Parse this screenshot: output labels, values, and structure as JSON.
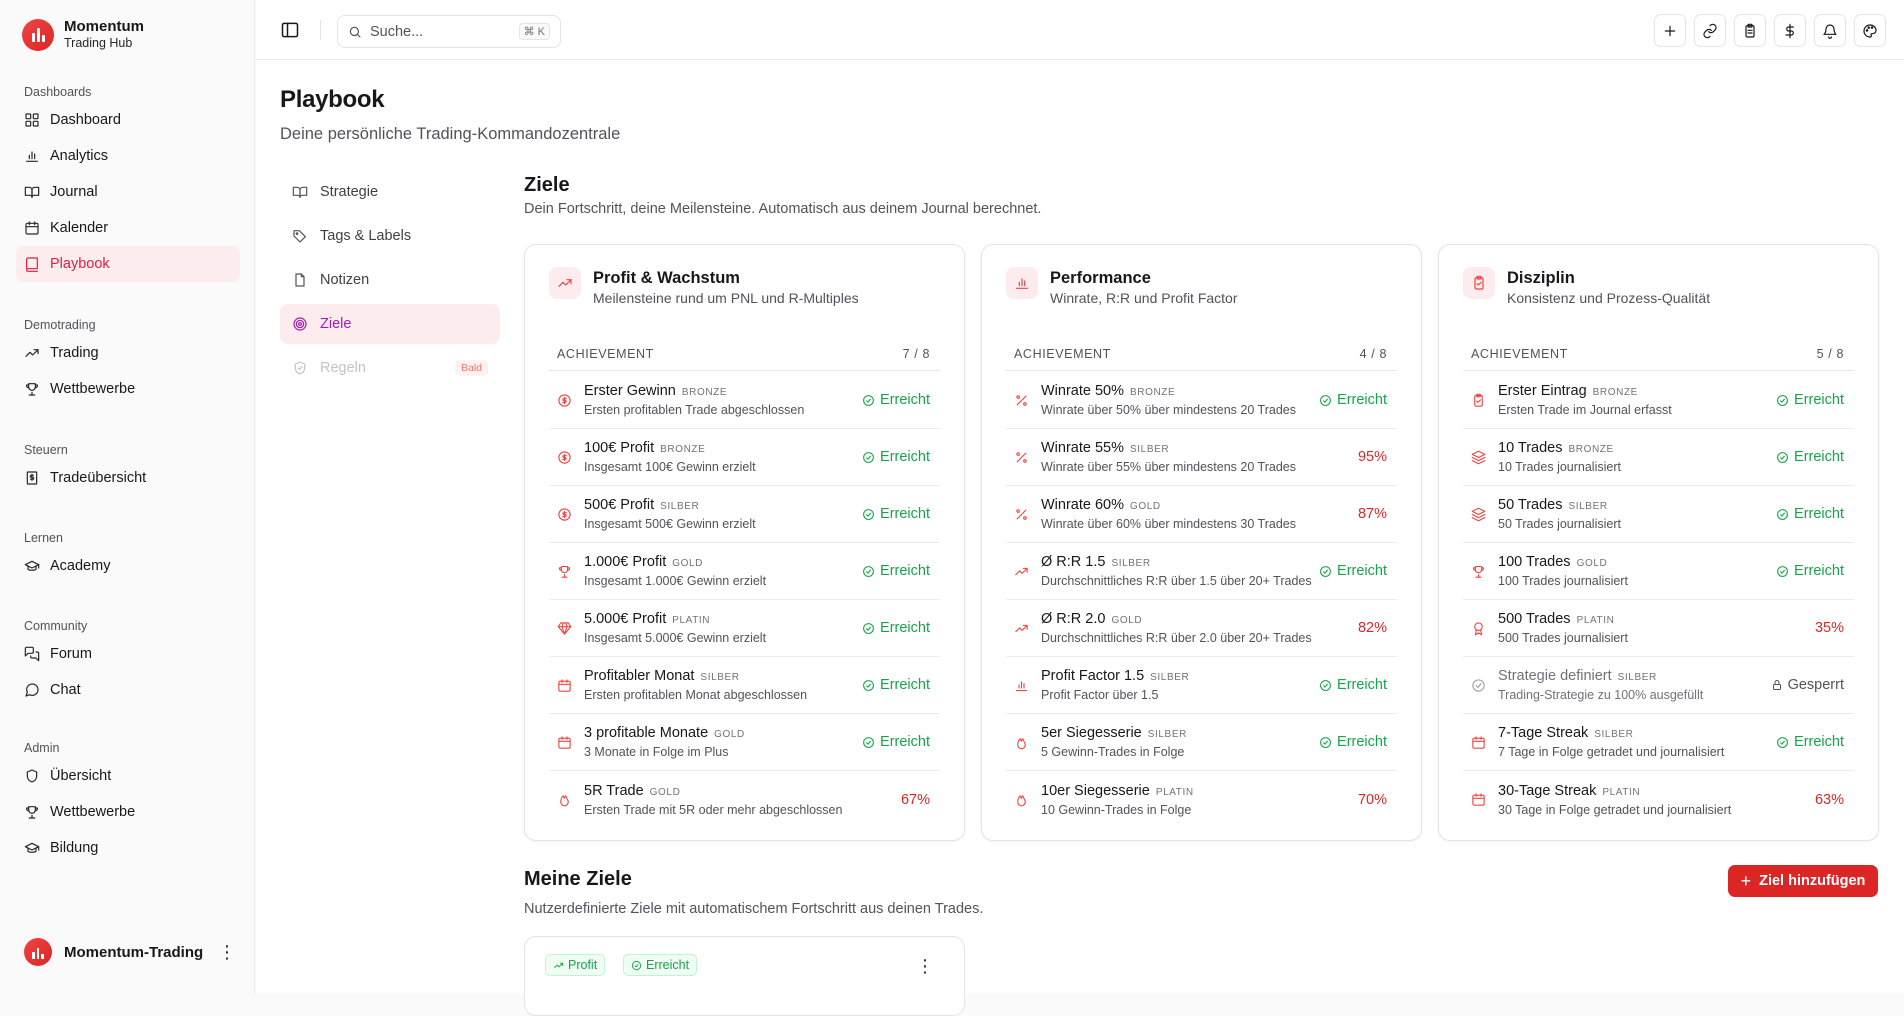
{
  "app": {
    "name": "Momentum",
    "subtitle": "Trading Hub",
    "user": "Momentum-Trading"
  },
  "sidebar": {
    "groups": [
      {
        "label": "Dashboards",
        "items": [
          {
            "label": "Dashboard",
            "icon": "layout-grid-icon"
          },
          {
            "label": "Analytics",
            "icon": "bar-chart-icon"
          },
          {
            "label": "Journal",
            "icon": "book-open-icon"
          },
          {
            "label": "Kalender",
            "icon": "calendar-icon"
          },
          {
            "label": "Playbook",
            "icon": "book-icon",
            "active": true
          }
        ]
      },
      {
        "label": "Demotrading",
        "items": [
          {
            "label": "Trading",
            "icon": "trending-up-icon"
          },
          {
            "label": "Wettbewerbe",
            "icon": "trophy-icon"
          }
        ]
      },
      {
        "label": "Steuern",
        "items": [
          {
            "label": "Tradeübersicht",
            "icon": "receipt-icon"
          }
        ]
      },
      {
        "label": "Lernen",
        "items": [
          {
            "label": "Academy",
            "icon": "graduation-cap-icon"
          }
        ]
      },
      {
        "label": "Community",
        "items": [
          {
            "label": "Forum",
            "icon": "messages-icon"
          },
          {
            "label": "Chat",
            "icon": "message-circle-icon"
          }
        ]
      },
      {
        "label": "Admin",
        "items": [
          {
            "label": "Übersicht",
            "icon": "shield-icon"
          },
          {
            "label": "Wettbewerbe",
            "icon": "trophy-icon"
          },
          {
            "label": "Bildung",
            "icon": "graduation-cap-icon"
          }
        ]
      }
    ]
  },
  "topbar": {
    "search_placeholder": "Suche...",
    "shortcut": "⌘ K"
  },
  "page": {
    "title": "Playbook",
    "subtitle": "Deine persönliche Trading-Kommandozentrale"
  },
  "subnav": [
    {
      "label": "Strategie",
      "icon": "book-open-icon"
    },
    {
      "label": "Tags & Labels",
      "icon": "tags-icon"
    },
    {
      "label": "Notizen",
      "icon": "file-icon"
    },
    {
      "label": "Ziele",
      "icon": "target-icon",
      "active": true
    },
    {
      "label": "Regeln",
      "icon": "shield-check-icon",
      "disabled": true,
      "badge": "Bald"
    }
  ],
  "goals": {
    "title": "Ziele",
    "subtitle": "Dein Fortschritt, deine Meilensteine. Automatisch aus deinem Journal berechnet."
  },
  "cards": [
    {
      "title": "Profit & Wachstum",
      "subtitle": "Meilensteine rund um PNL und R-Multiples",
      "icon": "trending-up-icon",
      "header": "ACHIEVEMENT",
      "count": "7 / 8",
      "rows": [
        {
          "name": "Erster Gewinn",
          "tier": "BRONZE",
          "desc": "Ersten profitablen Trade abgeschlossen",
          "status": "Erreicht",
          "icon": "dollar-circle-icon"
        },
        {
          "name": "100€ Profit",
          "tier": "BRONZE",
          "desc": "Insgesamt 100€ Gewinn erzielt",
          "status": "Erreicht",
          "icon": "dollar-circle-icon"
        },
        {
          "name": "500€ Profit",
          "tier": "SILBER",
          "desc": "Insgesamt 500€ Gewinn erzielt",
          "status": "Erreicht",
          "icon": "dollar-circle-icon"
        },
        {
          "name": "1.000€ Profit",
          "tier": "GOLD",
          "desc": "Insgesamt 1.000€ Gewinn erzielt",
          "status": "Erreicht",
          "icon": "trophy-icon"
        },
        {
          "name": "5.000€ Profit",
          "tier": "PLATIN",
          "desc": "Insgesamt 5.000€ Gewinn erzielt",
          "status": "Erreicht",
          "icon": "gem-icon"
        },
        {
          "name": "Profitabler Monat",
          "tier": "SILBER",
          "desc": "Ersten profitablen Monat abgeschlossen",
          "status": "Erreicht",
          "icon": "calendar-icon"
        },
        {
          "name": "3 profitable Monate",
          "tier": "GOLD",
          "desc": "3 Monate in Folge im Plus",
          "status": "Erreicht",
          "icon": "calendar-icon"
        },
        {
          "name": "5R Trade",
          "tier": "GOLD",
          "desc": "Ersten Trade mit 5R oder mehr abgeschlossen",
          "status": "67%",
          "icon": "flame-icon"
        }
      ]
    },
    {
      "title": "Performance",
      "subtitle": "Winrate, R:R und Profit Factor",
      "icon": "bar-chart-icon",
      "header": "ACHIEVEMENT",
      "count": "4 / 8",
      "rows": [
        {
          "name": "Winrate 50%",
          "tier": "BRONZE",
          "desc": "Winrate über 50% über mindestens 20 Trades",
          "status": "Erreicht",
          "icon": "percent-icon"
        },
        {
          "name": "Winrate 55%",
          "tier": "SILBER",
          "desc": "Winrate über 55% über mindestens 20 Trades",
          "status": "95%",
          "icon": "percent-icon"
        },
        {
          "name": "Winrate 60%",
          "tier": "GOLD",
          "desc": "Winrate über 60% über mindestens 30 Trades",
          "status": "87%",
          "icon": "percent-icon"
        },
        {
          "name": "Ø R:R 1.5",
          "tier": "SILBER",
          "desc": "Durchschnittliches R:R über 1.5 über 20+ Trades",
          "status": "Erreicht",
          "icon": "trending-up-icon"
        },
        {
          "name": "Ø R:R 2.0",
          "tier": "GOLD",
          "desc": "Durchschnittliches R:R über 2.0 über 20+ Trades",
          "status": "82%",
          "icon": "trending-up-icon"
        },
        {
          "name": "Profit Factor 1.5",
          "tier": "SILBER",
          "desc": "Profit Factor über 1.5",
          "status": "Erreicht",
          "icon": "bar-chart-icon"
        },
        {
          "name": "5er Siegesserie",
          "tier": "SILBER",
          "desc": "5 Gewinn-Trades in Folge",
          "status": "Erreicht",
          "icon": "flame-icon"
        },
        {
          "name": "10er Siegesserie",
          "tier": "PLATIN",
          "desc": "10 Gewinn-Trades in Folge",
          "status": "70%",
          "icon": "flame-icon"
        }
      ]
    },
    {
      "title": "Disziplin",
      "subtitle": "Konsistenz und Prozess-Qualität",
      "icon": "clipboard-check-icon",
      "header": "ACHIEVEMENT",
      "count": "5 / 8",
      "rows": [
        {
          "name": "Erster Eintrag",
          "tier": "BRONZE",
          "desc": "Ersten Trade im Journal erfasst",
          "status": "Erreicht",
          "icon": "clipboard-check-icon"
        },
        {
          "name": "10 Trades",
          "tier": "BRONZE",
          "desc": "10 Trades journalisiert",
          "status": "Erreicht",
          "icon": "layers-icon"
        },
        {
          "name": "50 Trades",
          "tier": "SILBER",
          "desc": "50 Trades journalisiert",
          "status": "Erreicht",
          "icon": "layers-icon"
        },
        {
          "name": "100 Trades",
          "tier": "GOLD",
          "desc": "100 Trades journalisiert",
          "status": "Erreicht",
          "icon": "trophy-icon"
        },
        {
          "name": "500 Trades",
          "tier": "PLATIN",
          "desc": "500 Trades journalisiert",
          "status": "35%",
          "icon": "award-icon"
        },
        {
          "name": "Strategie definiert",
          "tier": "SILBER",
          "desc": "Trading-Strategie zu 100% ausgefüllt",
          "status": "Gesperrt",
          "icon": "check-circle-icon",
          "locked": true
        },
        {
          "name": "7-Tage Streak",
          "tier": "SILBER",
          "desc": "7 Tage in Folge getradet und journalisiert",
          "status": "Erreicht",
          "icon": "calendar-icon"
        },
        {
          "name": "30-Tage Streak",
          "tier": "PLATIN",
          "desc": "30 Tage in Folge getradet und journalisiert",
          "status": "63%",
          "icon": "calendar-icon"
        }
      ]
    }
  ],
  "my_goals": {
    "title": "Meine Ziele",
    "subtitle": "Nutzerdefinierte Ziele mit automatischem Fortschritt aus deinen Trades.",
    "add_label": "Ziel hinzufügen",
    "chip_profit": "Profit",
    "chip_done": "Erreicht"
  },
  "colors": {
    "accent": "#dc2626",
    "active_bg": "#fdecee",
    "success": "#16a34a"
  }
}
